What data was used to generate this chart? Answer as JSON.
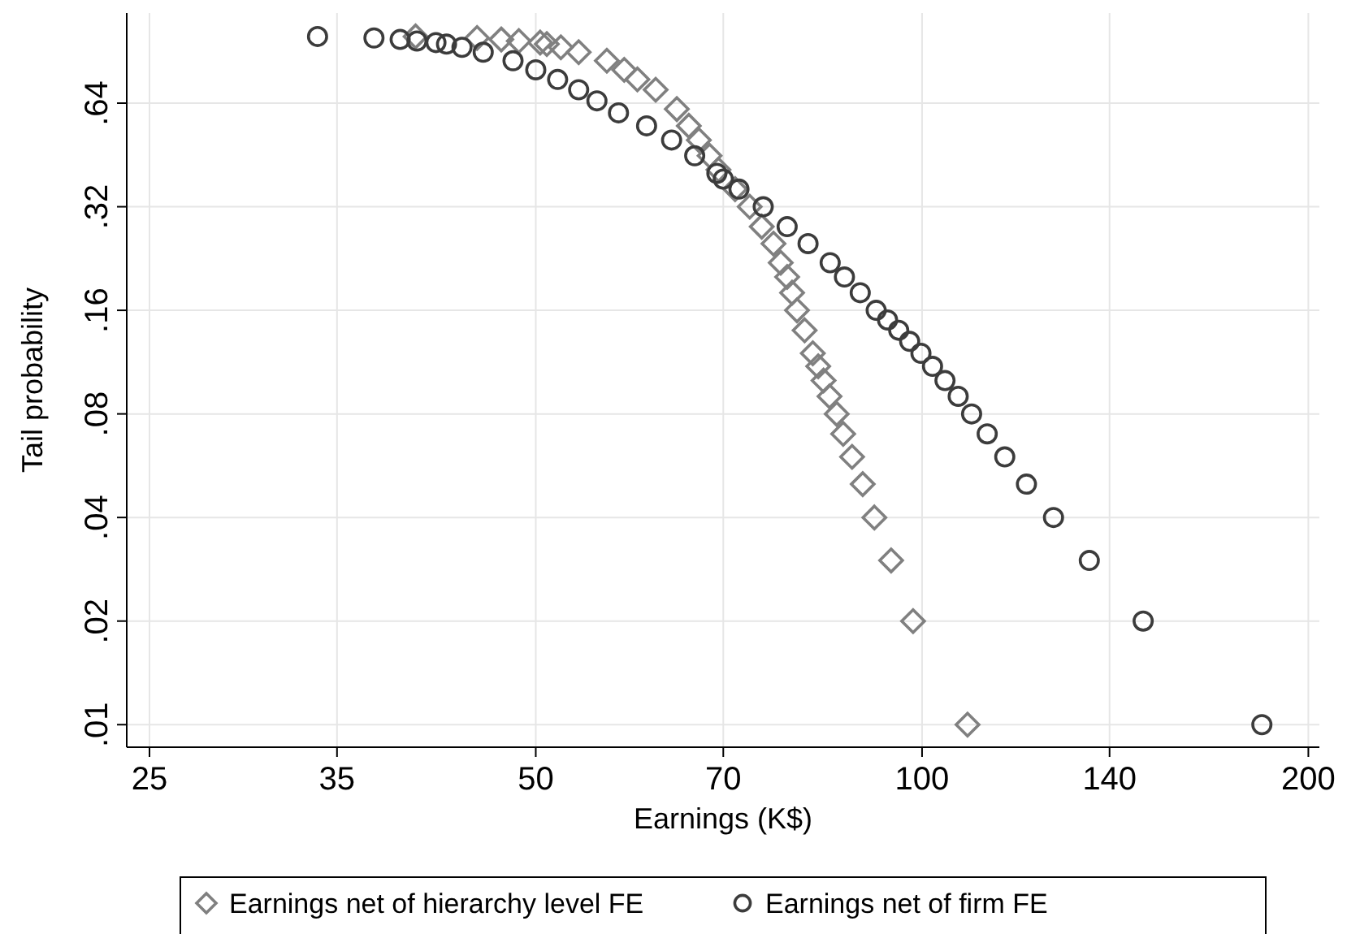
{
  "chart_data": {
    "type": "scatter",
    "xlabel": "Earnings (K$)",
    "ylabel": "Tail probability",
    "log": "xy",
    "grid": true,
    "legend": "bottom",
    "xlim": [
      24,
      204
    ],
    "xticks": [
      25,
      35,
      50,
      70,
      100,
      140,
      200
    ],
    "ylim": [
      0.0086,
      1.17
    ],
    "yticks": [
      {
        "value": 0.01,
        "label": ".01"
      },
      {
        "value": 0.02,
        "label": ".02"
      },
      {
        "value": 0.04,
        "label": ".04"
      },
      {
        "value": 0.08,
        "label": ".08"
      },
      {
        "value": 0.16,
        "label": ".16"
      },
      {
        "value": 0.32,
        "label": ".32"
      },
      {
        "value": 0.64,
        "label": ".64"
      }
    ],
    "series": [
      {
        "name": "Earnings net of hierarchy level FE",
        "color": "#808080",
        "marker": "diamond",
        "x": [
          108.5,
          98.4,
          94.6,
          91.8,
          89.9,
          88.2,
          86.8,
          85.8,
          84.7,
          83.8,
          83,
          82.2,
          81,
          79.9,
          79.2,
          78.5,
          77.6,
          76.6,
          75,
          73.4,
          71.5,
          69.4,
          68.3,
          67,
          65.8,
          64.4,
          62,
          60,
          58.6,
          56.8,
          54,
          52.3,
          51,
          50.4,
          48.5,
          47,
          45,
          40.3
        ],
        "values": [
          0.01,
          0.02,
          0.03,
          0.04,
          0.05,
          0.06,
          0.07,
          0.08,
          0.09,
          0.1,
          0.11,
          0.12,
          0.14,
          0.16,
          0.18,
          0.2,
          0.22,
          0.25,
          0.28,
          0.32,
          0.36,
          0.41,
          0.45,
          0.5,
          0.55,
          0.615,
          0.7,
          0.75,
          0.8,
          0.85,
          0.9,
          0.93,
          0.95,
          0.96,
          0.97,
          0.98,
          0.99,
          1.0
        ]
      },
      {
        "name": "Earnings net of firm FE",
        "color": "#3c3c3c",
        "marker": "circle",
        "x": [
          184,
          148.7,
          135,
          126.6,
          120.6,
          116,
          112.4,
          109.3,
          106.7,
          104.2,
          101.9,
          99.8,
          97.8,
          95.9,
          94,
          92.1,
          89.5,
          87,
          84.8,
          81.5,
          78.5,
          75.2,
          72,
          70,
          69.2,
          66.5,
          63.8,
          61,
          58,
          55.8,
          54,
          52,
          50,
          48,
          45.5,
          43.8,
          42.6,
          41.8,
          40.4,
          39.2,
          37.4,
          33.8
        ],
        "values": [
          0.01,
          0.02,
          0.03,
          0.04,
          0.05,
          0.06,
          0.07,
          0.08,
          0.09,
          0.1,
          0.11,
          0.12,
          0.13,
          0.14,
          0.15,
          0.16,
          0.18,
          0.2,
          0.22,
          0.25,
          0.28,
          0.32,
          0.36,
          0.385,
          0.4,
          0.45,
          0.5,
          0.55,
          0.6,
          0.65,
          0.7,
          0.75,
          0.8,
          0.85,
          0.9,
          0.93,
          0.95,
          0.96,
          0.97,
          0.98,
          0.99,
          1.0
        ]
      }
    ]
  }
}
